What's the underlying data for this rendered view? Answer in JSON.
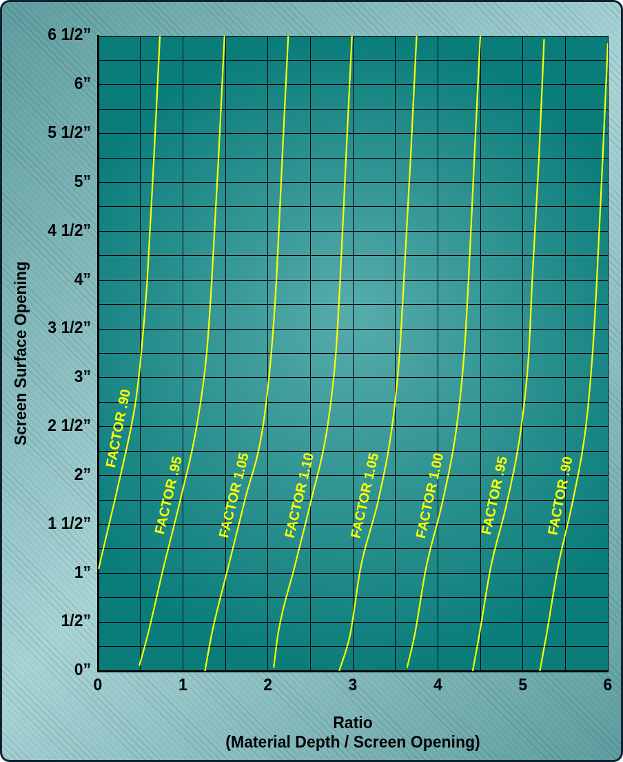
{
  "chart_data": {
    "type": "line",
    "xlabel": "Ratio\n(Material Depth / Screen Opening)",
    "ylabel": "Screen Surface Opening",
    "xlim": [
      0,
      6
    ],
    "ylim": [
      0,
      6.5
    ],
    "xticks": [
      0,
      {
        "value": 0.5,
        "label": null
      },
      1,
      {
        "value": 1.5,
        "label": null
      },
      2,
      {
        "value": 2.5,
        "label": null
      },
      3,
      {
        "value": 3.5,
        "label": null
      },
      4,
      {
        "value": 4.5,
        "label": null
      },
      5,
      {
        "value": 5.5,
        "label": null
      },
      6
    ],
    "yticks": [
      {
        "value": 0,
        "label": "0”"
      },
      {
        "value": 0.25,
        "label": null
      },
      {
        "value": 0.5,
        "label": "1/2”"
      },
      {
        "value": 0.75,
        "label": null
      },
      {
        "value": 1,
        "label": "1”"
      },
      {
        "value": 1.25,
        "label": null
      },
      {
        "value": 1.5,
        "label": "1 1/2”"
      },
      {
        "value": 1.75,
        "label": null
      },
      {
        "value": 2,
        "label": "2”"
      },
      {
        "value": 2.25,
        "label": null
      },
      {
        "value": 2.5,
        "label": "2 1/2”"
      },
      {
        "value": 2.75,
        "label": null
      },
      {
        "value": 3,
        "label": "3”"
      },
      {
        "value": 3.25,
        "label": null
      },
      {
        "value": 3.5,
        "label": "3 1/2”"
      },
      {
        "value": 3.75,
        "label": null
      },
      {
        "value": 4,
        "label": "4”"
      },
      {
        "value": 4.25,
        "label": null
      },
      {
        "value": 4.5,
        "label": "4 1/2”"
      },
      {
        "value": 4.75,
        "label": null
      },
      {
        "value": 5,
        "label": "5”"
      },
      {
        "value": 5.25,
        "label": null
      },
      {
        "value": 5.5,
        "label": "5 1/2”"
      },
      {
        "value": 5.75,
        "label": null
      },
      {
        "value": 6,
        "label": "6”"
      },
      {
        "value": 6.25,
        "label": null
      },
      {
        "value": 6.5,
        "label": "6 1/2”"
      }
    ],
    "grid": true,
    "legend": false,
    "marker": "none",
    "line_style": "solid",
    "series": [
      {
        "name": "FACTOR .90",
        "color": "#ffff00",
        "x": [
          0.01,
          0.2,
          0.3,
          0.39,
          0.45,
          0.51,
          0.58,
          0.66,
          0.73
        ],
        "values": [
          1.05,
          1.75,
          2.13,
          2.49,
          2.79,
          3.25,
          3.99,
          5.26,
          6.5
        ]
      },
      {
        "name": "FACTOR .95",
        "color": "#ffff00",
        "x": [
          0.49,
          0.59,
          0.77,
          0.97,
          1.16,
          1.28,
          1.34,
          1.42,
          1.49
        ],
        "values": [
          0.06,
          0.38,
          1.05,
          1.75,
          2.49,
          3.25,
          3.99,
          5.26,
          6.5
        ]
      },
      {
        "name": "FACTOR 1.05",
        "color": "#ffff00",
        "x": [
          1.26,
          1.34,
          1.53,
          1.73,
          1.94,
          2.04,
          2.1,
          2.17,
          2.24
        ],
        "values": [
          0,
          0.38,
          1.05,
          1.75,
          2.49,
          3.25,
          3.99,
          5.26,
          6.5
        ]
      },
      {
        "name": "FACTOR 1.10",
        "color": "#ffff00",
        "x": [
          2.07,
          2.12,
          2.31,
          2.51,
          2.7,
          2.8,
          2.85,
          2.92,
          2.99
        ],
        "values": [
          0.04,
          0.38,
          1.05,
          1.75,
          2.49,
          3.25,
          3.99,
          5.26,
          6.5
        ]
      },
      {
        "name": "FACTOR 1.05",
        "color": "#ffff00",
        "x": [
          2.84,
          2.97,
          3.09,
          3.3,
          3.46,
          3.55,
          3.6,
          3.68,
          3.75
        ],
        "values": [
          0,
          0.38,
          1.05,
          1.75,
          2.49,
          3.25,
          3.99,
          5.26,
          6.5
        ]
      },
      {
        "name": "FACTOR 1.00",
        "color": "#ffff00",
        "x": [
          3.64,
          3.73,
          3.86,
          4.06,
          4.22,
          4.31,
          4.36,
          4.43,
          4.5
        ],
        "values": [
          0.04,
          0.38,
          1.05,
          1.75,
          2.49,
          3.25,
          3.99,
          5.26,
          6.5
        ]
      },
      {
        "name": "FACTOR .95",
        "color": "#ffff00",
        "x": [
          4.41,
          4.49,
          4.62,
          4.82,
          4.98,
          5.07,
          5.11,
          5.19,
          5.25
        ],
        "values": [
          0,
          0.38,
          1.05,
          1.75,
          2.49,
          3.25,
          3.99,
          5.26,
          6.46
        ]
      },
      {
        "name": "FACTOR .90",
        "color": "#ffff00",
        "x": [
          5.2,
          5.28,
          5.41,
          5.59,
          5.74,
          5.82,
          5.87,
          5.94,
          6.0
        ],
        "values": [
          0,
          0.38,
          1.05,
          1.75,
          2.49,
          3.25,
          3.99,
          5.26,
          6.42
        ]
      }
    ]
  }
}
